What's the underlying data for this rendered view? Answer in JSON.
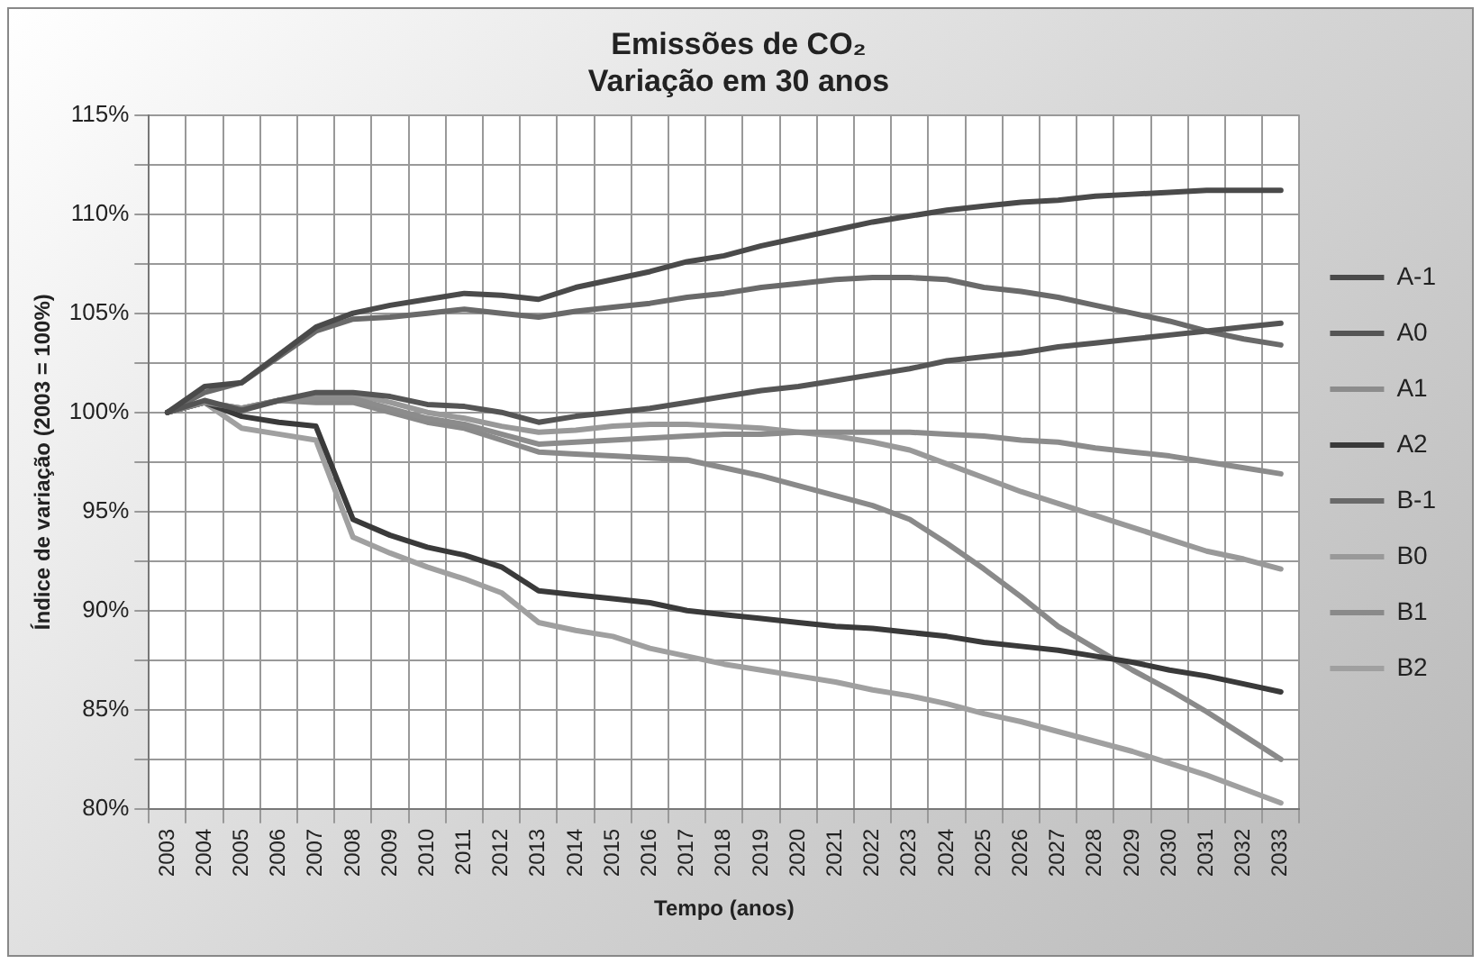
{
  "chart_data": {
    "type": "line",
    "title": "Emissões de CO₂\nVariação em 30 anos",
    "xlabel": "Tempo (anos)",
    "ylabel": "Índice de variação (2003 = 100%)",
    "categories": [
      "2003",
      "2004",
      "2005",
      "2006",
      "2007",
      "2008",
      "2009",
      "2010",
      "2011",
      "2012",
      "2013",
      "2014",
      "2015",
      "2016",
      "2017",
      "2018",
      "2019",
      "2020",
      "2021",
      "2022",
      "2023",
      "2024",
      "2025",
      "2026",
      "2027",
      "2028",
      "2029",
      "2030",
      "2031",
      "2032",
      "2033"
    ],
    "series": [
      {
        "name": "A-1",
        "color": "#4a4a4a",
        "values": [
          100,
          101.3,
          101.5,
          102.9,
          104.3,
          105.0,
          105.4,
          105.7,
          106.0,
          105.9,
          105.7,
          106.3,
          106.7,
          107.1,
          107.6,
          107.9,
          108.4,
          108.8,
          109.2,
          109.6,
          109.9,
          110.2,
          110.4,
          110.6,
          110.7,
          110.9,
          111.0,
          111.1,
          111.2,
          111.2,
          111.2
        ]
      },
      {
        "name": "A0",
        "color": "#555555",
        "values": [
          100,
          100.6,
          100.1,
          100.6,
          101.0,
          101.0,
          100.8,
          100.4,
          100.3,
          100.0,
          99.5,
          99.8,
          100.0,
          100.2,
          100.5,
          100.8,
          101.1,
          101.3,
          101.6,
          101.9,
          102.2,
          102.6,
          102.8,
          103.0,
          103.3,
          103.5,
          103.7,
          103.9,
          104.1,
          104.3,
          104.5
        ]
      },
      {
        "name": "A1",
        "color": "#8c8c8c",
        "values": [
          100,
          100.5,
          100.2,
          100.6,
          100.7,
          100.7,
          100.2,
          99.7,
          99.4,
          98.9,
          98.4,
          98.5,
          98.6,
          98.7,
          98.8,
          98.9,
          98.9,
          99.0,
          99.0,
          99.0,
          99.0,
          98.9,
          98.8,
          98.6,
          98.5,
          98.2,
          98.0,
          97.8,
          97.5,
          97.2,
          96.9
        ]
      },
      {
        "name": "A2",
        "color": "#3a3a3a",
        "values": [
          100,
          100.5,
          99.8,
          99.5,
          99.3,
          94.6,
          93.8,
          93.2,
          92.8,
          92.2,
          91.0,
          90.8,
          90.6,
          90.4,
          90.0,
          89.8,
          89.6,
          89.4,
          89.2,
          89.1,
          88.9,
          88.7,
          88.4,
          88.2,
          88.0,
          87.7,
          87.4,
          87.0,
          86.7,
          86.3,
          85.9
        ]
      },
      {
        "name": "B-1",
        "color": "#6a6a6a",
        "values": [
          100,
          101.0,
          101.5,
          102.8,
          104.1,
          104.7,
          104.8,
          105.0,
          105.2,
          105.0,
          104.8,
          105.1,
          105.3,
          105.5,
          105.8,
          106.0,
          106.3,
          106.5,
          106.7,
          106.8,
          106.8,
          106.7,
          106.3,
          106.1,
          105.8,
          105.4,
          105.0,
          104.6,
          104.1,
          103.7,
          103.4
        ]
      },
      {
        "name": "B0",
        "color": "#999999",
        "values": [
          100,
          100.5,
          100.2,
          100.6,
          100.9,
          100.9,
          100.5,
          100.0,
          99.7,
          99.3,
          99.0,
          99.1,
          99.3,
          99.4,
          99.4,
          99.3,
          99.2,
          99.0,
          98.8,
          98.5,
          98.1,
          97.4,
          96.7,
          96.0,
          95.4,
          94.8,
          94.2,
          93.6,
          93.0,
          92.6,
          92.1
        ]
      },
      {
        "name": "B1",
        "color": "#8a8a8a",
        "values": [
          100,
          100.5,
          100.2,
          100.6,
          100.5,
          100.5,
          100.0,
          99.5,
          99.2,
          98.6,
          98.0,
          97.9,
          97.8,
          97.7,
          97.6,
          97.2,
          96.8,
          96.3,
          95.8,
          95.3,
          94.6,
          93.4,
          92.1,
          90.7,
          89.2,
          88.1,
          87.0,
          86.0,
          84.9,
          83.7,
          82.5
        ]
      },
      {
        "name": "B2",
        "color": "#a0a0a0",
        "values": [
          100,
          100.5,
          99.2,
          98.9,
          98.6,
          93.7,
          92.9,
          92.2,
          91.6,
          90.9,
          89.4,
          89.0,
          88.7,
          88.1,
          87.7,
          87.3,
          87.0,
          86.7,
          86.4,
          86.0,
          85.7,
          85.3,
          84.8,
          84.4,
          83.9,
          83.4,
          82.9,
          82.3,
          81.7,
          81.0,
          80.3
        ]
      }
    ],
    "ylim": [
      80,
      115
    ],
    "yticks": [
      {
        "value": 80,
        "label": "80%"
      },
      {
        "value": 82.5,
        "label": null
      },
      {
        "value": 85,
        "label": "85%"
      },
      {
        "value": 87.5,
        "label": null
      },
      {
        "value": 90,
        "label": "90%"
      },
      {
        "value": 92.5,
        "label": null
      },
      {
        "value": 95,
        "label": "95%"
      },
      {
        "value": 97.5,
        "label": null
      },
      {
        "value": 100,
        "label": "100%"
      },
      {
        "value": 102.5,
        "label": null
      },
      {
        "value": 105,
        "label": "105%"
      },
      {
        "value": 107.5,
        "label": null
      },
      {
        "value": 110,
        "label": "110%"
      },
      {
        "value": 112.5,
        "label": null
      },
      {
        "value": 115,
        "label": "115%"
      }
    ],
    "grid": true,
    "legend": "right",
    "marker": "none",
    "line_style": "solid"
  }
}
